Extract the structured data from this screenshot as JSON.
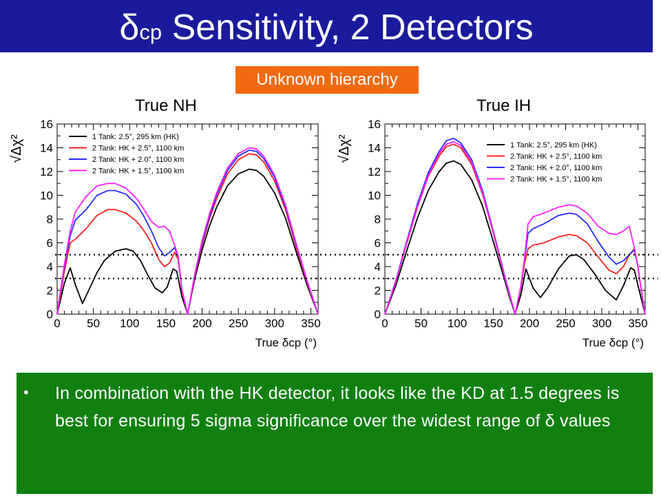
{
  "slide": {
    "title_main": "δ",
    "title_sub": "cp",
    "title_rest": " Sensitivity, 2 Detectors",
    "badge": "Unknown hierarchy",
    "left_label": "True NH",
    "right_label": "True IH",
    "bullet_text": "In combination with the HK detector, it looks like the KD at 1.5 degrees is best for ensuring 5 sigma significance over the widest range of δ values",
    "colors": {
      "title_bg": "#1a1a9c",
      "badge_bg": "#f26a10",
      "box_bg": "#118011"
    }
  },
  "chart_data": [
    {
      "type": "line",
      "ylabel": "√Δχ²",
      "xlabel": "True δcp (°)",
      "xlim": [
        0,
        360
      ],
      "ylim": [
        0,
        16
      ],
      "xticks": [
        "0",
        "50",
        "100",
        "150",
        "200",
        "250",
        "300",
        "350"
      ],
      "yticks": [
        "0",
        "2",
        "4",
        "6",
        "8",
        "10",
        "12",
        "14",
        "16"
      ],
      "reference_lines": [
        3,
        5
      ],
      "legend_position": "top-left",
      "series": [
        {
          "name": "1 Tank: 2.5°, 295 km (HK)",
          "color": "#000000",
          "x": [
            0,
            10,
            18,
            25,
            35,
            45,
            55,
            65,
            80,
            95,
            105,
            115,
            125,
            135,
            145,
            152,
            160,
            165,
            172,
            180,
            190,
            200,
            210,
            220,
            235,
            250,
            265,
            275,
            285,
            300,
            315,
            330,
            345,
            360
          ],
          "y": [
            0,
            2.6,
            3.9,
            2.5,
            0.9,
            2.2,
            3.5,
            4.5,
            5.3,
            5.5,
            5.3,
            4.5,
            3.3,
            2.2,
            1.8,
            2.3,
            3.8,
            3.6,
            1.5,
            0,
            3.0,
            5.4,
            7.4,
            9.0,
            10.8,
            11.8,
            12.2,
            12.1,
            11.6,
            10.2,
            8.1,
            5.2,
            2.4,
            0
          ]
        },
        {
          "name": "2 Tank: HK + 2.5°, 1100 km",
          "color": "#ff2020",
          "x": [
            0,
            10,
            18,
            25,
            40,
            55,
            70,
            80,
            95,
            110,
            120,
            130,
            140,
            148,
            155,
            162,
            167,
            172,
            180,
            190,
            200,
            210,
            220,
            235,
            250,
            265,
            275,
            285,
            300,
            315,
            330,
            345,
            360
          ],
          "y": [
            0,
            3.6,
            6.0,
            6.3,
            7.2,
            8.3,
            8.8,
            8.8,
            8.5,
            7.8,
            7.0,
            6.0,
            4.6,
            4.0,
            4.3,
            5.2,
            4.6,
            2.0,
            0,
            3.2,
            5.8,
            8.0,
            9.7,
            11.8,
            13.0,
            13.5,
            13.4,
            12.8,
            11.2,
            8.8,
            5.6,
            2.6,
            0
          ]
        },
        {
          "name": "2 Tank: HK + 2.0°, 1100 km",
          "color": "#2a2aff",
          "x": [
            0,
            10,
            18,
            25,
            40,
            55,
            70,
            80,
            95,
            110,
            120,
            130,
            140,
            148,
            155,
            162,
            167,
            172,
            180,
            190,
            200,
            210,
            220,
            235,
            250,
            265,
            275,
            285,
            300,
            315,
            330,
            345,
            360
          ],
          "y": [
            0,
            4.0,
            6.6,
            7.9,
            8.8,
            10.0,
            10.4,
            10.4,
            10.1,
            9.2,
            8.2,
            7.0,
            5.6,
            4.9,
            5.2,
            5.6,
            4.8,
            2.1,
            0,
            3.3,
            6.0,
            8.2,
            10.0,
            12.1,
            13.3,
            13.8,
            13.7,
            13.1,
            11.5,
            9.0,
            5.8,
            2.7,
            0
          ]
        },
        {
          "name": "2 Tank: HK + 1.5°, 1100 km",
          "color": "#ff22ff",
          "x": [
            0,
            10,
            18,
            25,
            40,
            55,
            70,
            80,
            95,
            110,
            120,
            130,
            140,
            148,
            155,
            162,
            167,
            172,
            180,
            190,
            200,
            210,
            220,
            235,
            250,
            265,
            275,
            285,
            300,
            315,
            330,
            345,
            360
          ],
          "y": [
            0,
            4.2,
            7.0,
            8.6,
            9.9,
            10.8,
            11.0,
            11.0,
            10.6,
            9.7,
            8.8,
            7.8,
            7.3,
            7.4,
            7.0,
            5.8,
            4.9,
            2.1,
            0,
            3.4,
            6.2,
            8.4,
            10.2,
            12.3,
            13.5,
            14.0,
            13.9,
            13.3,
            11.7,
            9.2,
            5.9,
            2.8,
            0
          ]
        }
      ]
    },
    {
      "type": "line",
      "ylabel": "√Δχ²",
      "xlabel": "True δcp (°)",
      "xlim": [
        0,
        360
      ],
      "ylim": [
        0,
        16
      ],
      "xticks": [
        "0",
        "50",
        "100",
        "150",
        "200",
        "250",
        "300",
        "350"
      ],
      "yticks": [
        "0",
        "2",
        "4",
        "6",
        "8",
        "10",
        "12",
        "14",
        "16"
      ],
      "reference_lines": [
        3,
        5
      ],
      "legend_position": "top-right",
      "series": [
        {
          "name": "1 Tank: 2.5°, 295 km (HK)",
          "color": "#000000",
          "x": [
            0,
            15,
            30,
            45,
            60,
            75,
            85,
            95,
            105,
            120,
            135,
            150,
            165,
            172,
            180,
            188,
            195,
            200,
            205,
            215,
            225,
            240,
            255,
            265,
            275,
            290,
            305,
            320,
            330,
            340,
            345,
            350,
            360
          ],
          "y": [
            0,
            2.4,
            5.3,
            8.1,
            10.4,
            12.0,
            12.7,
            12.9,
            12.6,
            11.3,
            9.1,
            6.1,
            3.0,
            1.5,
            0,
            1.6,
            3.8,
            3.0,
            2.2,
            1.4,
            2.2,
            3.8,
            4.9,
            5.0,
            4.6,
            3.4,
            2.0,
            1.2,
            2.4,
            3.9,
            3.7,
            2.4,
            0
          ]
        },
        {
          "name": "2 Tank: HK + 2.5°, 1100 km",
          "color": "#ff2020",
          "x": [
            0,
            15,
            30,
            45,
            60,
            75,
            85,
            95,
            105,
            120,
            135,
            150,
            165,
            172,
            180,
            188,
            193,
            198,
            205,
            220,
            240,
            255,
            265,
            280,
            295,
            310,
            320,
            330,
            338,
            345,
            350,
            355,
            360
          ],
          "y": [
            0,
            2.7,
            5.9,
            9.0,
            11.6,
            13.3,
            14.1,
            14.3,
            14.0,
            12.6,
            10.1,
            6.8,
            3.3,
            1.7,
            0,
            2.2,
            4.2,
            5.5,
            5.8,
            6.0,
            6.5,
            6.7,
            6.6,
            6.0,
            4.8,
            3.7,
            3.4,
            4.0,
            5.0,
            5.5,
            4.0,
            1.8,
            0
          ]
        },
        {
          "name": "2 Tank: HK + 2.0°, 1100 km",
          "color": "#2a2aff",
          "x": [
            0,
            15,
            30,
            45,
            60,
            75,
            85,
            95,
            105,
            120,
            135,
            150,
            165,
            172,
            180,
            188,
            193,
            198,
            205,
            220,
            240,
            255,
            265,
            280,
            295,
            310,
            320,
            330,
            338,
            345,
            350,
            355,
            360
          ],
          "y": [
            0,
            2.8,
            6.1,
            9.3,
            11.9,
            13.7,
            14.6,
            14.8,
            14.4,
            13.0,
            10.4,
            7.0,
            3.4,
            1.8,
            0,
            2.3,
            4.5,
            6.8,
            7.2,
            7.6,
            8.3,
            8.5,
            8.4,
            7.6,
            6.1,
            4.8,
            4.2,
            4.5,
            5.0,
            5.4,
            4.0,
            1.8,
            0
          ]
        },
        {
          "name": "2 Tank: HK + 1.5°, 1100 km",
          "color": "#ff22ff",
          "x": [
            0,
            15,
            30,
            45,
            60,
            75,
            85,
            95,
            105,
            120,
            135,
            150,
            165,
            172,
            180,
            188,
            193,
            198,
            205,
            220,
            240,
            255,
            265,
            280,
            295,
            310,
            320,
            330,
            338,
            345,
            350,
            355,
            360
          ],
          "y": [
            0,
            2.7,
            6.0,
            9.1,
            11.7,
            13.5,
            14.3,
            14.5,
            14.2,
            12.8,
            10.2,
            6.9,
            3.3,
            1.7,
            0,
            2.3,
            4.6,
            7.6,
            8.2,
            8.5,
            9.0,
            9.2,
            9.1,
            8.5,
            7.4,
            6.8,
            6.7,
            7.0,
            7.4,
            5.6,
            4.0,
            1.8,
            0
          ]
        }
      ]
    }
  ]
}
